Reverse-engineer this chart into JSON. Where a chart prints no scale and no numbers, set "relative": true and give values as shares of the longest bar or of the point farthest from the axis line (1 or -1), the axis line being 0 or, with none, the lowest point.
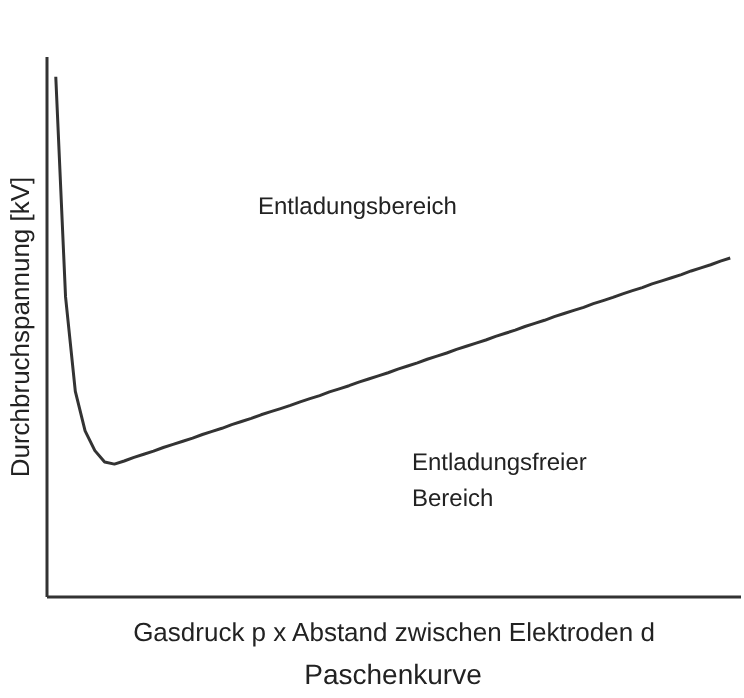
{
  "chart_data": {
    "type": "line",
    "title": "Paschenkurve",
    "xlabel": "Gasdruck p x Abstand zwischen Elektroden d",
    "ylabel": "Durchbruchspannung [kV]",
    "relative": true,
    "grid": false,
    "marker": "none",
    "line_style": "solid",
    "categories": [
      null,
      null,
      null,
      null,
      null,
      null,
      null,
      null,
      null,
      null,
      null,
      null,
      null,
      null,
      null,
      null,
      null,
      null,
      null,
      null,
      null,
      null,
      null,
      null,
      null,
      null,
      null,
      null,
      null,
      null,
      null,
      null,
      null,
      null,
      null,
      null,
      null,
      null,
      null,
      null,
      null,
      null,
      null,
      null,
      null,
      null,
      null,
      null,
      null,
      null,
      null,
      null,
      null,
      null,
      null,
      null,
      null,
      null,
      null,
      null,
      null,
      null,
      null,
      null,
      null,
      null,
      null,
      null,
      null,
      null
    ],
    "series": [
      {
        "color": "#333333",
        "values": [
          1.0,
          0.576,
          0.394,
          0.318,
          0.28,
          0.258,
          0.254,
          0.26,
          0.267,
          0.273,
          0.279,
          0.286,
          0.292,
          0.298,
          0.304,
          0.311,
          0.317,
          0.323,
          0.33,
          0.336,
          0.342,
          0.349,
          0.355,
          0.361,
          0.367,
          0.374,
          0.38,
          0.386,
          0.393,
          0.399,
          0.405,
          0.412,
          0.418,
          0.424,
          0.43,
          0.437,
          0.443,
          0.449,
          0.456,
          0.462,
          0.468,
          0.475,
          0.481,
          0.487,
          0.493,
          0.5,
          0.506,
          0.512,
          0.519,
          0.525,
          0.531,
          0.538,
          0.544,
          0.55,
          0.556,
          0.563,
          0.569,
          0.575,
          0.582,
          0.588,
          0.594,
          0.601,
          0.607,
          0.613,
          0.619,
          0.626,
          0.632,
          0.638,
          0.645,
          0.651
        ]
      }
    ],
    "annotations": [
      "Entladungsbereich",
      "Entladungsfreier\nBereich"
    ]
  }
}
